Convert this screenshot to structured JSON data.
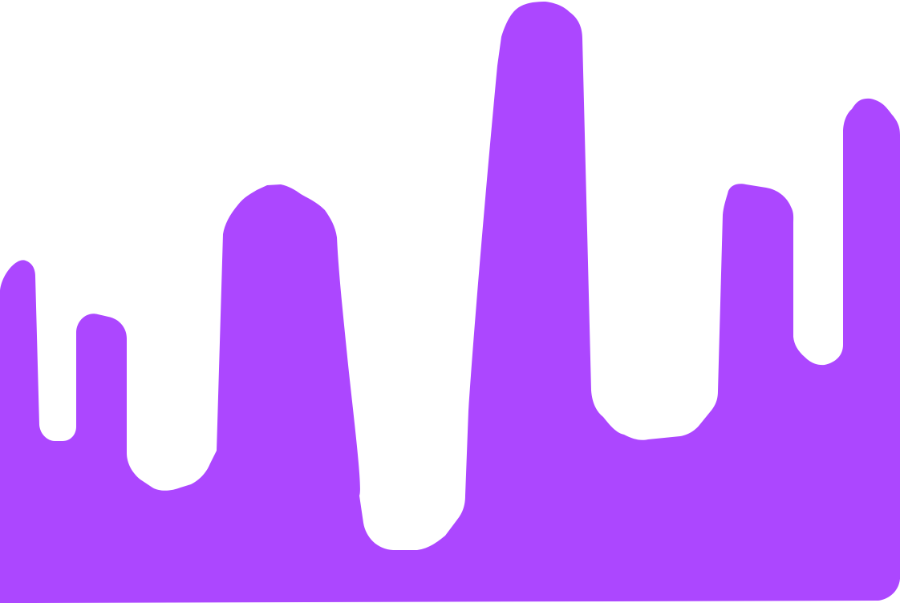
{
  "colors": {
    "background": "#ffffff",
    "shape_fill": "#ac47ff"
  },
  "graphic": {
    "kind": "decorative-drip-silhouette"
  }
}
